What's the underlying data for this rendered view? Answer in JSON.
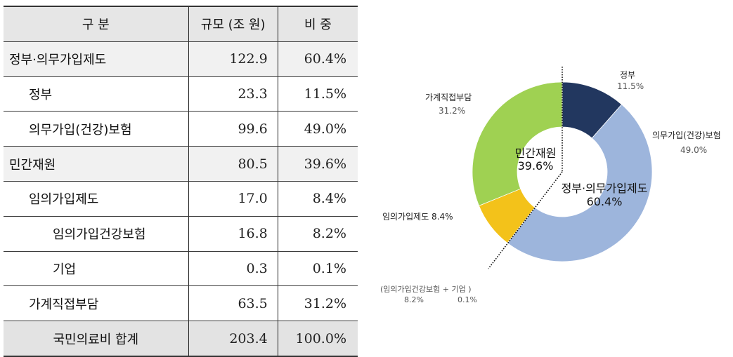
{
  "table": {
    "headers": [
      "구 분",
      "규모 (조 원)",
      "비 중"
    ],
    "rows": [
      {
        "label": "정부·의무가입제도",
        "amount": "122.9",
        "share": "60.4%",
        "level": 0,
        "group": true
      },
      {
        "label": "정부",
        "amount": "23.3",
        "share": "11.5%",
        "level": 1
      },
      {
        "label": "의무가입(건강)보험",
        "amount": "99.6",
        "share": "49.0%",
        "level": 1
      },
      {
        "label": "민간재원",
        "amount": "80.5",
        "share": "39.6%",
        "level": 0,
        "group": true
      },
      {
        "label": "임의가입제도",
        "amount": "17.0",
        "share": "8.4%",
        "level": 1
      },
      {
        "label": "임의가입건강보험",
        "amount": "16.8",
        "share": "8.2%",
        "level": 2
      },
      {
        "label": "기업",
        "amount": "0.3",
        "share": "0.1%",
        "level": 2
      },
      {
        "label": "가계직접부담",
        "amount": "63.5",
        "share": "31.2%",
        "level": 1
      },
      {
        "label": "국민의료비 합계",
        "amount": "203.4",
        "share": "100.0%",
        "total": true
      }
    ]
  },
  "chart_data": {
    "type": "pie",
    "subtype": "donut",
    "title": "",
    "categories": [
      "정부",
      "의무가입(건강)보험",
      "임의가입제도",
      "가계직접부담"
    ],
    "values": [
      11.5,
      49.0,
      8.4,
      31.2
    ],
    "colors": [
      "#22375f",
      "#9db5dc",
      "#f3c21a",
      "#9fd152"
    ],
    "labels": {
      "gov": {
        "name": "정부",
        "value": "11.5%"
      },
      "mandatory": {
        "name": "의무가입(건강)보험",
        "value": "49.0%"
      },
      "voluntary": {
        "name": "임의가입제도 8.4%"
      },
      "household": {
        "name": "가계직접부담",
        "value": "31.2%"
      },
      "voluntary_note": {
        "line1": "(임의가입건강보험 + 기업 )",
        "v1": "8.2%",
        "v2": "0.1%"
      }
    },
    "groups": [
      {
        "name": "정부·의무가입제도",
        "value": "60.4%"
      },
      {
        "name": "민간재원",
        "value": "39.6%"
      }
    ],
    "legend": "none"
  }
}
